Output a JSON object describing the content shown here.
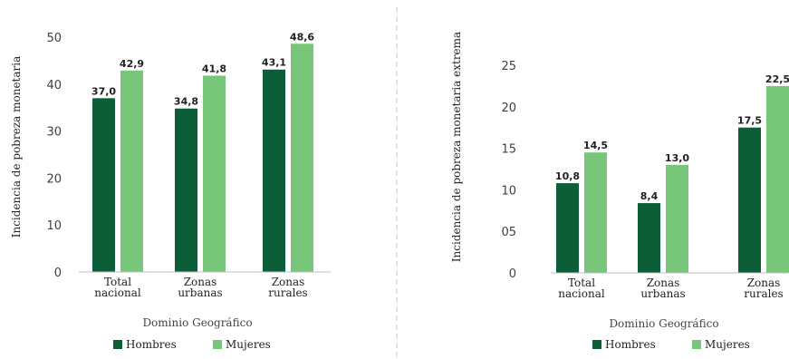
{
  "colors": {
    "hombres": "#0b5e38",
    "mujeres": "#78c679",
    "axis": "#bfbfbf",
    "divider": "#c8c8c8"
  },
  "legend": {
    "hombres": "Hombres",
    "mujeres": "Mujeres"
  },
  "chart_data": [
    {
      "type": "bar",
      "title": "",
      "ylabel": "Incidencia de pobreza monetaria",
      "xlabel": "Dominio Geográfico",
      "ylim": [
        0,
        50
      ],
      "ytick_labels": [
        "0",
        "10",
        "20",
        "30",
        "40",
        "50"
      ],
      "categories": [
        [
          "Total",
          "nacional"
        ],
        [
          "Zonas",
          "urbanas"
        ],
        [
          "Zonas",
          "rurales"
        ]
      ],
      "series": [
        {
          "name": "Hombres",
          "values": [
            37.0,
            34.8,
            43.1
          ],
          "labels": [
            "37,0",
            "34,8",
            "43,1"
          ]
        },
        {
          "name": "Mujeres",
          "values": [
            42.9,
            41.8,
            48.6
          ],
          "labels": [
            "42,9",
            "41,8",
            "48,6"
          ]
        }
      ],
      "legend_position": "bottom",
      "grid": false
    },
    {
      "type": "bar",
      "title": "",
      "ylabel": "Incidencia de pobreza monetaria extrema",
      "xlabel": "Dominio Geográfico",
      "ylim": [
        0,
        25
      ],
      "ytick_labels": [
        "0",
        "05",
        "10",
        "15",
        "20",
        "25"
      ],
      "categories": [
        [
          "Total",
          "nacional"
        ],
        [
          "Zonas",
          "urbanas"
        ],
        [
          "Zonas",
          "rurales"
        ]
      ],
      "series": [
        {
          "name": "Hombres",
          "values": [
            10.8,
            8.4,
            17.5
          ],
          "labels": [
            "10,8",
            "8,4",
            "17,5"
          ]
        },
        {
          "name": "Mujeres",
          "values": [
            14.5,
            13.0,
            22.5
          ],
          "labels": [
            "14,5",
            "13,0",
            "22,5"
          ]
        }
      ],
      "legend_position": "bottom",
      "grid": false
    }
  ]
}
